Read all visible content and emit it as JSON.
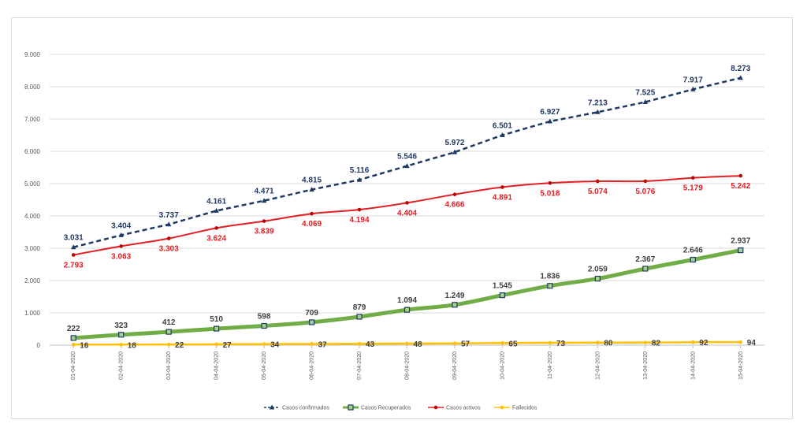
{
  "chart_data": {
    "type": "line",
    "categories": [
      "01-04-2020",
      "02-04-2020",
      "03-04-2020",
      "04-04-2020",
      "05-04-2020",
      "06-04-2020",
      "07-04-2020",
      "08-04-2020",
      "09-04-2020",
      "10-04-2020",
      "11-04-2020",
      "12-04-2020",
      "13-04-2020",
      "14-04-2020",
      "15-04-2020"
    ],
    "ylim": [
      0,
      9000
    ],
    "yticks": [
      0,
      1000,
      2000,
      3000,
      4000,
      5000,
      6000,
      7000,
      8000,
      9000
    ],
    "ytick_labels": [
      "0",
      "1.000",
      "2.000",
      "3.000",
      "4.000",
      "5.000",
      "6.000",
      "7.000",
      "8.000",
      "9.000"
    ],
    "grid": true,
    "legend_position": "bottom",
    "series": [
      {
        "name": "Casos confirmados",
        "color": "#1f3864",
        "style": "dashed",
        "marker": "triangle",
        "values": [
          3031,
          3404,
          3737,
          4161,
          4471,
          4815,
          5116,
          5546,
          5972,
          6501,
          6927,
          7213,
          7525,
          7917,
          8273
        ],
        "labels": [
          "3.031",
          "3.404",
          "3.737",
          "4.161",
          "4.471",
          "4.815",
          "5.116",
          "5.546",
          "5.972",
          "6.501",
          "6.927",
          "7.213",
          "7.525",
          "7.917",
          "8.273"
        ]
      },
      {
        "name": "Casos Recuperados",
        "color": "#70ad47",
        "style": "solid",
        "marker": "square",
        "values": [
          222,
          323,
          412,
          510,
          598,
          709,
          879,
          1094,
          1249,
          1545,
          1836,
          2059,
          2367,
          2646,
          2937
        ],
        "labels": [
          "222",
          "323",
          "412",
          "510",
          "598",
          "709",
          "879",
          "1.094",
          "1.249",
          "1.545",
          "1.836",
          "2.059",
          "2.367",
          "2.646",
          "2.937"
        ]
      },
      {
        "name": "Casos activos",
        "color": "#e31e24",
        "style": "solid",
        "marker": "circle",
        "values": [
          2793,
          3063,
          3303,
          3624,
          3839,
          4069,
          4194,
          4404,
          4666,
          4891,
          5018,
          5074,
          5076,
          5179,
          5242
        ],
        "labels": [
          "2.793",
          "3.063",
          "3.303",
          "3.624",
          "3.839",
          "4.069",
          "4.194",
          "4.404",
          "4.666",
          "4.891",
          "5.018",
          "5.074",
          "5.076",
          "5.179",
          "5.242"
        ]
      },
      {
        "name": "Fallecidos",
        "color": "#ffc000",
        "style": "solid",
        "marker": "circle",
        "values": [
          16,
          18,
          22,
          27,
          34,
          37,
          43,
          48,
          57,
          65,
          73,
          80,
          82,
          92,
          94
        ],
        "labels": [
          "16",
          "18",
          "22",
          "27",
          "34",
          "37",
          "43",
          "48",
          "57",
          "65",
          "73",
          "80",
          "82",
          "92",
          "94"
        ]
      }
    ]
  }
}
